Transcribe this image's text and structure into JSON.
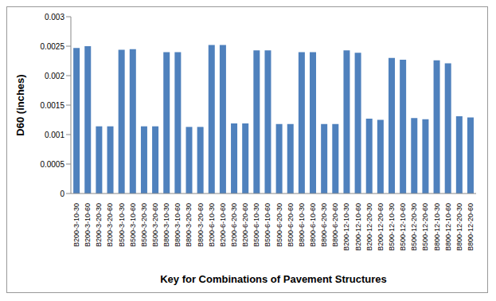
{
  "chart_data": {
    "type": "bar",
    "y_label": "D60 (inches)",
    "x_label": "Key for Combinations of Pavement Structures",
    "categories": [
      "B200-3-10-30",
      "B200-3-10-60",
      "B200-3-20-30",
      "B200-3-20-60",
      "B500-3-10-30",
      "B500-3-10-60",
      "B500-3-20-30",
      "B500-3-20-60",
      "B800-3-10-30",
      "B800-3-10-60",
      "B800-3-20-30",
      "B800-3-20-60",
      "B200-6-10-30",
      "B200-6-10-60",
      "B200-6-20-30",
      "B200-6-20-60",
      "B500-6-10-30",
      "B500-6-10-60",
      "B500-6-20-30",
      "B500-6-20-60",
      "B800-6-10-30",
      "B800-6-10-60",
      "B800-6-20-30",
      "B800-6-20-60",
      "B200-12-10-30",
      "B200-12-10-60",
      "B200-12-20-30",
      "B200-12-20-60",
      "B500-12-10-30",
      "B500-12-10-60",
      "B500-12-20-30",
      "B500-12-20-60",
      "B800-12-10-30",
      "B800-12-10-60",
      "B800-12-20-30",
      "B800-12-20-60"
    ],
    "values": [
      0.00247,
      0.0025,
      0.00114,
      0.00114,
      0.00244,
      0.00245,
      0.00114,
      0.00114,
      0.0024,
      0.0024,
      0.00113,
      0.00113,
      0.00252,
      0.00252,
      0.00119,
      0.00119,
      0.00243,
      0.00243,
      0.00118,
      0.00118,
      0.0024,
      0.0024,
      0.00118,
      0.00118,
      0.00243,
      0.00239,
      0.00127,
      0.00125,
      0.0023,
      0.00227,
      0.00128,
      0.00126,
      0.00226,
      0.00221,
      0.00131,
      0.00129
    ],
    "color": "#4f81bd",
    "ylim": [
      0,
      0.003
    ],
    "yticks": [
      0,
      0.0005,
      0.001,
      0.0015,
      0.002,
      0.0025,
      0.003
    ],
    "grid": false
  }
}
